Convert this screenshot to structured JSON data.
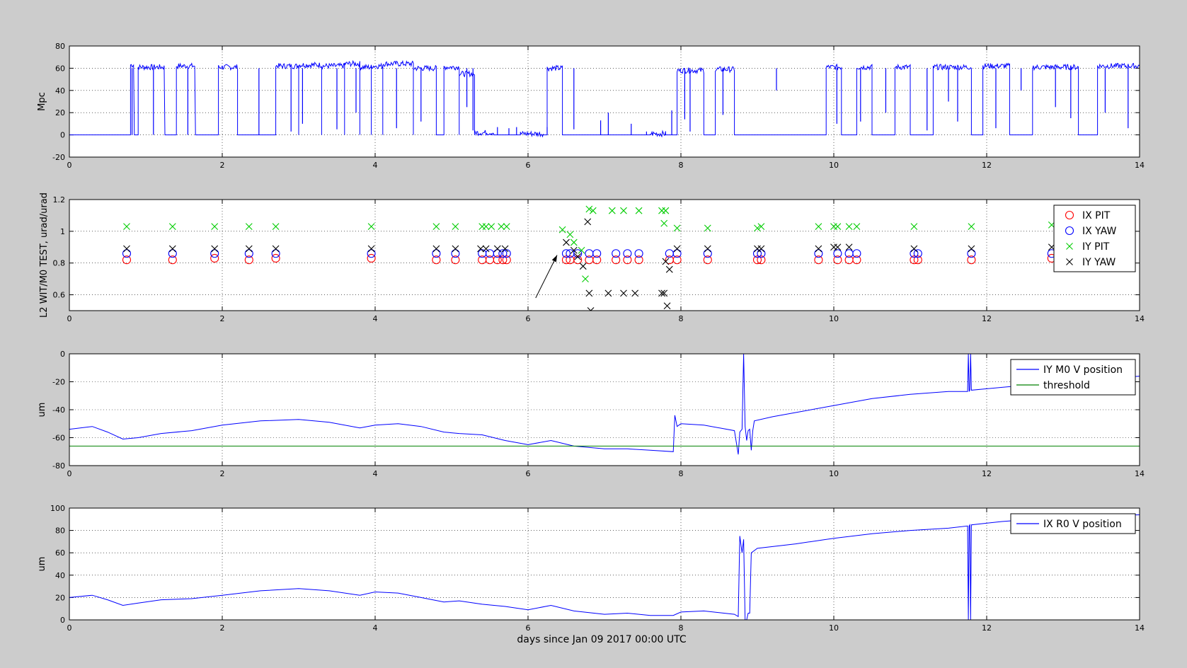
{
  "figure": {
    "background": "#cccccc",
    "colors": {
      "blue": "#0000ff",
      "red": "#ff0000",
      "green": "#00cc00",
      "black": "#000000",
      "threshold": "#008000"
    },
    "xlabel": "days since Jan 09 2017 00:00 UTC"
  },
  "chart_data": [
    {
      "type": "line",
      "ylabel": "Mpc",
      "xlim": [
        0,
        14
      ],
      "ylim": [
        -20,
        80
      ],
      "xticks": [
        "0",
        "2",
        "4",
        "6",
        "8",
        "10",
        "12",
        "14"
      ],
      "yticks": [
        "-20",
        "0",
        "20",
        "40",
        "60",
        "80"
      ],
      "grid": true,
      "series": [
        {
          "color": "#0000ff",
          "segments": [
            [
              0.0,
              0.8,
              0
            ],
            [
              0.8,
              0.85,
              63
            ],
            [
              0.85,
              0.9,
              0
            ],
            [
              0.9,
              1.25,
              61
            ],
            [
              1.25,
              1.4,
              0
            ],
            [
              1.4,
              1.65,
              62
            ],
            [
              1.65,
              1.95,
              0
            ],
            [
              1.95,
              2.2,
              61
            ],
            [
              2.2,
              2.7,
              0
            ],
            [
              2.7,
              3.0,
              62
            ],
            [
              3.0,
              3.3,
              63
            ],
            [
              3.3,
              3.6,
              62
            ],
            [
              3.6,
              3.8,
              64
            ],
            [
              3.8,
              3.95,
              61
            ],
            [
              3.95,
              4.1,
              62
            ],
            [
              4.1,
              4.5,
              64
            ],
            [
              4.5,
              4.8,
              60
            ],
            [
              4.8,
              4.9,
              0
            ],
            [
              4.9,
              5.1,
              61
            ],
            [
              5.1,
              5.3,
              55
            ],
            [
              5.3,
              5.55,
              2
            ],
            [
              5.55,
              5.9,
              0
            ],
            [
              5.9,
              6.2,
              1
            ],
            [
              6.2,
              6.25,
              0
            ],
            [
              6.25,
              6.45,
              60
            ],
            [
              6.45,
              6.7,
              0
            ],
            [
              6.7,
              7.6,
              0
            ],
            [
              7.6,
              7.8,
              1
            ],
            [
              7.8,
              7.95,
              0
            ],
            [
              7.95,
              8.3,
              58
            ],
            [
              8.3,
              8.45,
              0
            ],
            [
              8.45,
              8.7,
              59
            ],
            [
              8.7,
              9.9,
              0
            ],
            [
              9.9,
              10.1,
              61
            ],
            [
              10.1,
              10.3,
              0
            ],
            [
              10.3,
              10.5,
              61
            ],
            [
              10.5,
              10.8,
              0
            ],
            [
              10.8,
              11.0,
              61
            ],
            [
              11.0,
              11.3,
              0
            ],
            [
              11.3,
              11.8,
              61
            ],
            [
              11.8,
              11.95,
              0
            ],
            [
              11.95,
              12.3,
              62
            ],
            [
              12.3,
              12.6,
              0
            ],
            [
              12.6,
              13.2,
              61
            ],
            [
              13.2,
              13.45,
              0
            ],
            [
              13.45,
              14.0,
              62
            ]
          ],
          "dips": [
            [
              0.82,
              0
            ],
            [
              1.1,
              0
            ],
            [
              1.55,
              0
            ],
            [
              2.48,
              0
            ],
            [
              2.9,
              3
            ],
            [
              3.05,
              10
            ],
            [
              3.5,
              5
            ],
            [
              3.75,
              20
            ],
            [
              4.28,
              6
            ],
            [
              4.6,
              12
            ],
            [
              5.2,
              25
            ],
            [
              5.28,
              4
            ],
            [
              6.6,
              5
            ],
            [
              8.05,
              14
            ],
            [
              8.12,
              3
            ],
            [
              8.55,
              18
            ],
            [
              9.25,
              40
            ],
            [
              10.04,
              10
            ],
            [
              10.35,
              12
            ],
            [
              10.68,
              20
            ],
            [
              11.22,
              4
            ],
            [
              11.5,
              30
            ],
            [
              11.62,
              12
            ],
            [
              12.12,
              6
            ],
            [
              12.45,
              40
            ],
            [
              12.9,
              25
            ],
            [
              13.1,
              15
            ],
            [
              13.55,
              20
            ],
            [
              13.85,
              6
            ]
          ],
          "spikes": [
            [
              5.6,
              7
            ],
            [
              5.75,
              6
            ],
            [
              5.85,
              7
            ],
            [
              6.25,
              7
            ],
            [
              6.95,
              13
            ],
            [
              7.05,
              20
            ],
            [
              7.35,
              10
            ],
            [
              7.55,
              3
            ],
            [
              7.88,
              22
            ]
          ]
        }
      ]
    },
    {
      "type": "scatter",
      "ylabel": "L2 WIT/M0 TEST, urad/urad",
      "xlim": [
        0,
        14
      ],
      "ylim": [
        0.5,
        1.2
      ],
      "xticks": [
        "0",
        "2",
        "4",
        "6",
        "8",
        "10",
        "12",
        "14"
      ],
      "yticks": [
        "0.6",
        "0.8",
        "1",
        "1.2"
      ],
      "grid": true,
      "legend": {
        "position": "top-right",
        "entries": [
          {
            "label": "IX PIT",
            "marker": "o",
            "color": "#ff0000"
          },
          {
            "label": "IX YAW",
            "marker": "o",
            "color": "#0000ff"
          },
          {
            "label": "IY PIT",
            "marker": "x",
            "color": "#00cc00"
          },
          {
            "label": "IY YAW",
            "marker": "x",
            "color": "#000000"
          }
        ]
      },
      "series": [
        {
          "name": "IX PIT",
          "marker": "o",
          "color": "#ff0000",
          "x": [
            0.75,
            1.35,
            1.9,
            2.35,
            2.7,
            3.95,
            4.8,
            5.05,
            5.4,
            5.5,
            5.6,
            5.67,
            5.72,
            6.5,
            6.55,
            6.65,
            6.8,
            6.9,
            7.15,
            7.3,
            7.45,
            7.85,
            7.95,
            8.35,
            9.0,
            9.05,
            9.8,
            10.05,
            10.2,
            10.3,
            11.05,
            11.1,
            11.8,
            12.85
          ],
          "y": [
            0.82,
            0.82,
            0.83,
            0.82,
            0.83,
            0.83,
            0.82,
            0.82,
            0.82,
            0.82,
            0.82,
            0.82,
            0.82,
            0.82,
            0.82,
            0.82,
            0.82,
            0.82,
            0.82,
            0.82,
            0.82,
            0.82,
            0.82,
            0.82,
            0.82,
            0.82,
            0.82,
            0.82,
            0.82,
            0.82,
            0.82,
            0.82,
            0.82,
            0.83
          ]
        },
        {
          "name": "IX YAW",
          "marker": "o",
          "color": "#0000ff",
          "x": [
            0.75,
            1.35,
            1.9,
            2.35,
            2.7,
            3.95,
            4.8,
            5.05,
            5.4,
            5.5,
            5.6,
            5.67,
            5.72,
            6.5,
            6.55,
            6.65,
            6.8,
            6.9,
            7.15,
            7.3,
            7.45,
            7.85,
            7.95,
            8.35,
            9.0,
            9.05,
            9.8,
            10.05,
            10.2,
            10.3,
            11.05,
            11.1,
            11.8,
            12.85
          ],
          "y": [
            0.86,
            0.86,
            0.86,
            0.86,
            0.86,
            0.86,
            0.86,
            0.86,
            0.86,
            0.86,
            0.86,
            0.86,
            0.86,
            0.86,
            0.86,
            0.86,
            0.86,
            0.86,
            0.86,
            0.86,
            0.86,
            0.86,
            0.86,
            0.86,
            0.86,
            0.86,
            0.86,
            0.86,
            0.86,
            0.86,
            0.86,
            0.86,
            0.86,
            0.86
          ]
        },
        {
          "name": "IY PIT",
          "marker": "x",
          "color": "#00cc00",
          "x": [
            0.75,
            1.35,
            1.9,
            2.35,
            2.7,
            3.95,
            4.8,
            5.05,
            5.4,
            5.45,
            5.52,
            5.65,
            5.72,
            6.45,
            6.55,
            6.6,
            6.7,
            6.75,
            6.8,
            6.85,
            7.1,
            7.25,
            7.45,
            7.75,
            7.8,
            7.78,
            7.95,
            8.35,
            9.0,
            9.05,
            9.8,
            10.0,
            10.05,
            10.2,
            10.3,
            11.05,
            11.8,
            12.85
          ],
          "y": [
            1.03,
            1.03,
            1.03,
            1.03,
            1.03,
            1.03,
            1.03,
            1.03,
            1.03,
            1.03,
            1.03,
            1.03,
            1.03,
            1.01,
            0.98,
            0.93,
            0.88,
            0.7,
            1.14,
            1.13,
            1.13,
            1.13,
            1.13,
            1.13,
            1.13,
            1.05,
            1.02,
            1.02,
            1.02,
            1.03,
            1.03,
            1.03,
            1.03,
            1.03,
            1.03,
            1.03,
            1.03,
            1.04
          ]
        },
        {
          "name": "IY YAW",
          "marker": "x",
          "color": "#000000",
          "x": [
            0.75,
            1.35,
            1.9,
            2.35,
            2.7,
            3.95,
            4.8,
            5.05,
            5.38,
            5.45,
            5.6,
            5.7,
            6.5,
            6.6,
            6.65,
            6.72,
            6.78,
            6.8,
            6.82,
            7.05,
            7.25,
            7.4,
            7.75,
            7.78,
            7.8,
            7.82,
            7.85,
            7.95,
            8.35,
            9.0,
            9.05,
            9.8,
            10.0,
            10.05,
            10.2,
            11.05,
            11.8,
            12.85
          ],
          "y": [
            0.89,
            0.89,
            0.89,
            0.89,
            0.89,
            0.89,
            0.89,
            0.89,
            0.89,
            0.89,
            0.89,
            0.89,
            0.93,
            0.88,
            0.84,
            0.78,
            1.06,
            0.61,
            0.5,
            0.61,
            0.61,
            0.61,
            0.61,
            0.61,
            0.81,
            0.53,
            0.76,
            0.89,
            0.89,
            0.89,
            0.89,
            0.89,
            0.9,
            0.9,
            0.9,
            0.89,
            0.89,
            0.9
          ]
        }
      ],
      "annotations": [
        {
          "type": "arrow",
          "from": [
            6.1,
            0.58
          ],
          "to": [
            6.38,
            0.85
          ]
        }
      ]
    },
    {
      "type": "line",
      "ylabel": "um",
      "xlim": [
        0,
        14
      ],
      "ylim": [
        -80,
        0
      ],
      "xticks": [
        "0",
        "2",
        "4",
        "6",
        "8",
        "10",
        "12",
        "14"
      ],
      "yticks": [
        "-80",
        "-60",
        "-40",
        "-20",
        "0"
      ],
      "grid": true,
      "legend": {
        "position": "top-right",
        "entries": [
          {
            "label": "IY M0 V position",
            "color": "#0000ff"
          },
          {
            "label": "threshold",
            "color": "#008000"
          }
        ]
      },
      "series": [
        {
          "name": "IY M0 V position",
          "color": "#0000ff",
          "x": [
            0,
            0.3,
            0.5,
            0.7,
            0.9,
            1.2,
            1.6,
            2.0,
            2.5,
            3.0,
            3.4,
            3.8,
            4.0,
            4.3,
            4.6,
            4.9,
            5.1,
            5.4,
            5.7,
            6.0,
            6.3,
            6.6,
            7.0,
            7.3,
            7.6,
            7.9,
            7.92,
            7.95,
            8.0,
            8.3,
            8.7,
            8.75,
            8.77,
            8.8,
            8.82,
            8.84,
            8.86,
            8.88,
            8.9,
            8.92,
            8.94,
            8.96,
            9.2,
            9.5,
            10.0,
            10.5,
            11.0,
            11.5,
            11.75,
            11.76,
            11.77,
            11.78,
            11.79,
            11.8,
            12.2,
            12.6,
            13.0,
            13.5,
            14.0
          ],
          "y": [
            -54,
            -52,
            -56,
            -61,
            -60,
            -57,
            -55,
            -51,
            -48,
            -47,
            -49,
            -53,
            -51,
            -50,
            -52,
            -56,
            -57,
            -58,
            -62,
            -65,
            -62,
            -66,
            -68,
            -68,
            -69,
            -70,
            -44,
            -52,
            -50,
            -51,
            -55,
            -72,
            -56,
            -54,
            0,
            -52,
            -62,
            -55,
            -54,
            -69,
            -55,
            -48,
            -45,
            -42,
            -37,
            -32,
            -29,
            -27,
            -27,
            0,
            -27,
            -26,
            0,
            -26,
            -24,
            -22,
            -20,
            -18,
            -16
          ]
        },
        {
          "name": "threshold",
          "color": "#008000",
          "x": [
            0,
            14
          ],
          "y": [
            -66,
            -66
          ]
        }
      ]
    },
    {
      "type": "line",
      "ylabel": "um",
      "xlim": [
        0,
        14
      ],
      "ylim": [
        0,
        100
      ],
      "xticks": [
        "0",
        "2",
        "4",
        "6",
        "8",
        "10",
        "12",
        "14"
      ],
      "yticks": [
        "0",
        "20",
        "40",
        "60",
        "80",
        "100"
      ],
      "grid": true,
      "legend": {
        "position": "top-right",
        "entries": [
          {
            "label": "IX R0 V position",
            "color": "#0000ff"
          }
        ]
      },
      "series": [
        {
          "name": "IX R0 V position",
          "color": "#0000ff",
          "x": [
            0,
            0.3,
            0.5,
            0.7,
            0.9,
            1.2,
            1.6,
            2.0,
            2.5,
            3.0,
            3.4,
            3.8,
            4.0,
            4.3,
            4.6,
            4.9,
            5.1,
            5.4,
            5.7,
            6.0,
            6.3,
            6.6,
            7.0,
            7.3,
            7.6,
            7.9,
            8.0,
            8.3,
            8.7,
            8.75,
            8.77,
            8.8,
            8.82,
            8.84,
            8.86,
            8.88,
            8.9,
            8.92,
            9.0,
            9.5,
            10.0,
            10.5,
            11.0,
            11.5,
            11.75,
            11.76,
            11.77,
            11.78,
            11.79,
            11.8,
            12.2,
            12.6,
            13.0,
            13.5,
            14.0
          ],
          "y": [
            20,
            22,
            18,
            13,
            15,
            18,
            19,
            22,
            26,
            28,
            26,
            22,
            25,
            24,
            20,
            16,
            17,
            14,
            12,
            9,
            13,
            8,
            5,
            6,
            4,
            4,
            7,
            8,
            5,
            3,
            75,
            60,
            72,
            0,
            0,
            6,
            6,
            60,
            64,
            68,
            73,
            77,
            80,
            82,
            84,
            0,
            84,
            85,
            0,
            85,
            88,
            90,
            91,
            93,
            94
          ]
        }
      ]
    }
  ]
}
